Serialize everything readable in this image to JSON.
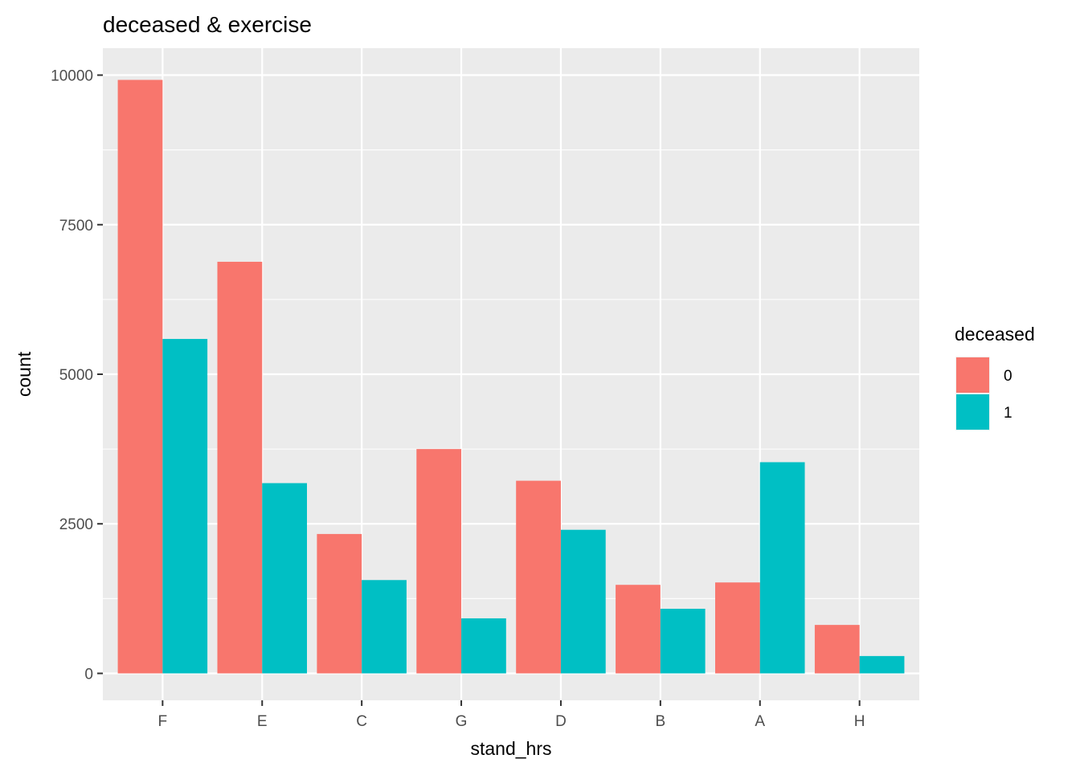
{
  "chart_data": {
    "type": "bar",
    "title": "deceased & exercise",
    "xlabel": "stand_hrs",
    "ylabel": "count",
    "categories": [
      "F",
      "E",
      "C",
      "G",
      "D",
      "B",
      "A",
      "H"
    ],
    "series": [
      {
        "name": "0",
        "color": "#F8766D",
        "values": [
          9920,
          6880,
          2330,
          3750,
          3220,
          1480,
          1520,
          810
        ]
      },
      {
        "name": "1",
        "color": "#00BFC4",
        "values": [
          5590,
          3180,
          1560,
          920,
          2400,
          1080,
          3530,
          290
        ]
      }
    ],
    "ylim": [
      -450,
      10450
    ],
    "yticks": [
      0,
      2500,
      5000,
      7500,
      10000
    ],
    "ytick_labels": [
      "0",
      "2500",
      "5000",
      "7500",
      "10000"
    ],
    "legend": {
      "title": "deceased",
      "placement": "right"
    },
    "grid": true,
    "panel_background": "#EBEBEB",
    "grid_color": "#FFFFFF"
  }
}
